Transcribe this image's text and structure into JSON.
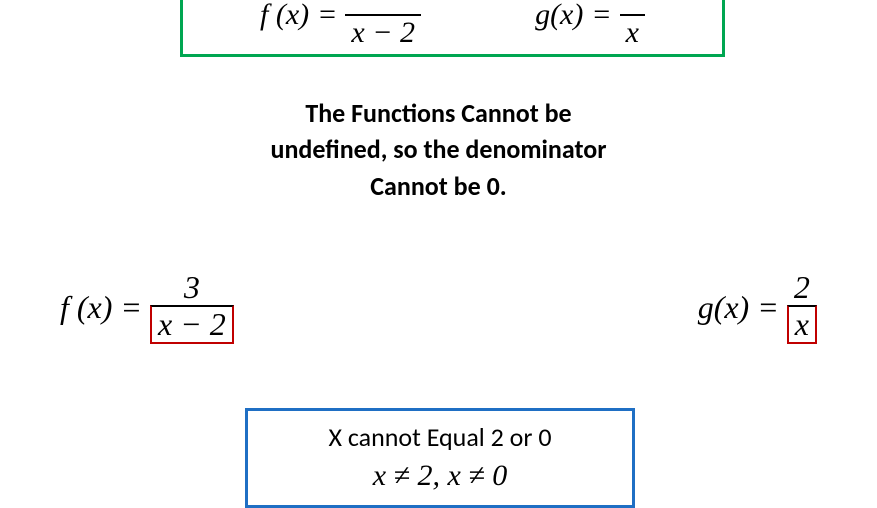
{
  "colors": {
    "green_border": "#00a651",
    "red_border": "#c00000",
    "blue_border": "#1f6fc4",
    "text": "#000000",
    "background": "#ffffff"
  },
  "typography": {
    "math_font": "Times New Roman",
    "body_font": "Calibri",
    "math_size_top": 30,
    "math_size_mid": 32,
    "caption_size": 26,
    "explanation_size": 26
  },
  "greenbox": {
    "f_label": "f (x)",
    "f_eq": "=",
    "f_den": "x − 2",
    "g_label": "g(x)",
    "g_eq": "=",
    "g_den": "x"
  },
  "explanation": {
    "line1": "The Functions Cannot be",
    "line2": "undefined, so the denominator",
    "line3": "Cannot be 0."
  },
  "mid": {
    "f_label": "f (x)",
    "f_eq": "=",
    "f_num": "3",
    "f_den": "x − 2",
    "g_label": "g(x)",
    "g_eq": "=",
    "g_num": "2",
    "g_den": "x"
  },
  "bluebox": {
    "caption": "X cannot Equal 2 or 0",
    "math": "x ≠ 2, x ≠ 0"
  }
}
